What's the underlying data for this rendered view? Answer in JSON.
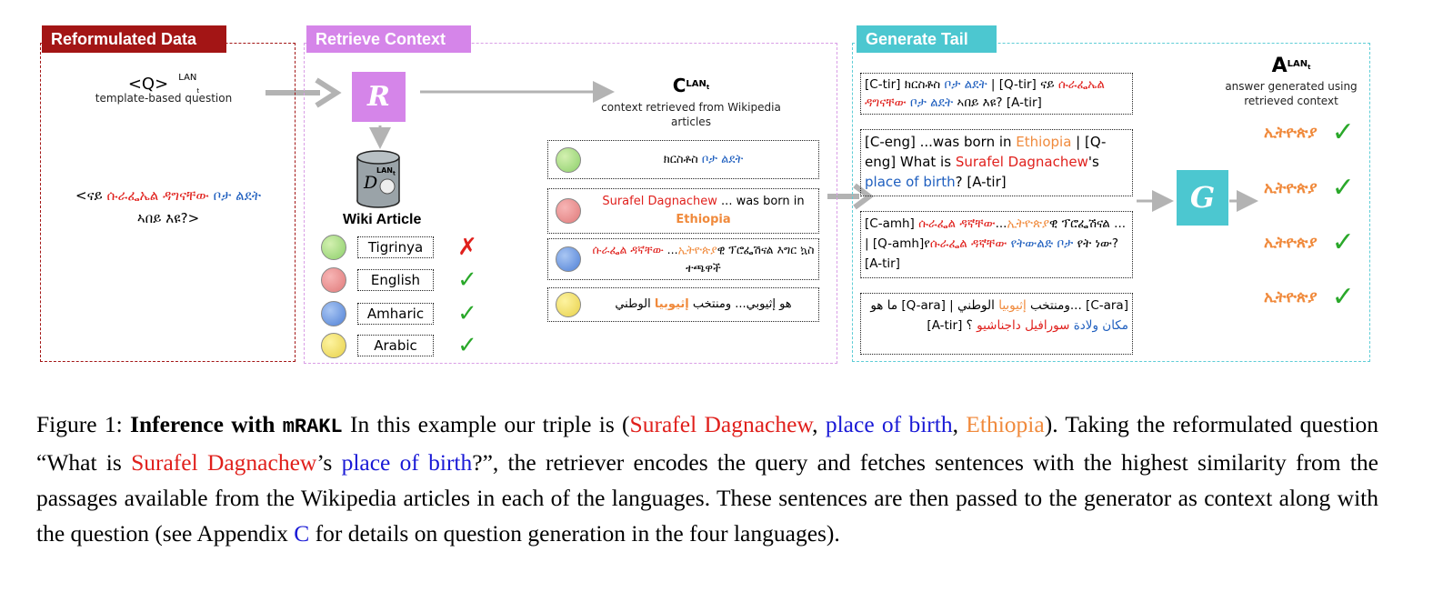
{
  "colors": {
    "reformulated": "#a31515",
    "retrieve": "#d585e9",
    "generate": "#4cc7d0",
    "subject": "#e0201c",
    "relation": "#1f5fbf",
    "object": "#f08a3c",
    "check": "#2aa82a"
  },
  "panel1": {
    "tag": "Reformulated Data",
    "q_label": "<Q>",
    "q_sup": "LAN",
    "q_sub": "t",
    "q_caption": "template-based question",
    "question": {
      "p1": "<ናይ ",
      "subject": "ሱራፌኤል ዳግናቸው",
      "p2": " ",
      "relation": "ቦታ ልደት",
      "p3": " ኣበይ እዩ?>"
    }
  },
  "panel2": {
    "tag": "Retrieve Context",
    "retriever_glyph": "R",
    "db_glyph": "D",
    "db_sup": "LAN",
    "db_sub": "t",
    "db_caption": "Wiki Article",
    "c_label": "C",
    "c_sup": "LAN",
    "c_sub": "t",
    "c_caption": "context retrieved from Wikipedia articles",
    "languages": [
      {
        "name": "Tigrinya",
        "status": "cross"
      },
      {
        "name": "English",
        "status": "check"
      },
      {
        "name": "Amharic",
        "status": "check"
      },
      {
        "name": "Arabic",
        "status": "check"
      }
    ],
    "contexts": [
      {
        "a": "ክርስቶስ ",
        "b": "ቦታ ልደት",
        "c": ""
      },
      {
        "a": "Surafel Dagnachew",
        "b": " ... was born in ",
        "c": "Ethiopia"
      },
      {
        "a": "ሱራፌል ዳኛቸው",
        "b": " ...",
        "c": "ኢትዮጵያ",
        "d": "ዊ ፕሮፌሽናል እግር ኳስ ተጫዋች"
      },
      {
        "a": "هو إثيوبي... ومنتخب ",
        "c": "إثيوبيا",
        "b": " الوطني"
      }
    ]
  },
  "panel3": {
    "tag": "Generate Tail",
    "generator_glyph": "G",
    "a_label": "A",
    "a_sup": "LAN",
    "a_sub": "t",
    "a_caption": "answer generated using retrieved context",
    "inputs": [
      {
        "t1": "[C-tir] ክርስቶስ ",
        "r1": "ቦታ ልደት",
        "t2": " | [Q-tir] ናይ ",
        "s1": "ሱራፌኤል ዳግናቸው",
        "t3": " ",
        "r2": "ቦታ ልደት",
        "t4": " ኣበይ እዩ?  [A-tir]"
      },
      {
        "t1": "[C-eng] ...was born in ",
        "o1": "Ethiopia",
        "t2": " | [Q-eng] What is ",
        "s1": "Surafel Dagnachew",
        "t3": "'s ",
        "r1": "place of birth",
        "t4": "?  [A-tir]"
      },
      {
        "t1": "[C-amh] ",
        "s1": "ሱራፌል ዳኛቸው",
        "t2": "...",
        "o1": "ኢትዮጵያ",
        "t3": "ዊ ፕሮፌሽናል ... | [Q-amh]የ",
        "s2": "ሱራፌል ዳኛቸው",
        "t4": " ",
        "r1": "የትውልድ ቦታ",
        "t5": " የት ነው? [A-tir]"
      },
      {
        "t1": "[C-ara] ...ومنتخب ",
        "o1": "إثيوبيا",
        "t2": " الوطني | [Q-ara] ما هو ",
        "r1": "مكان ولادة",
        "t3": " ",
        "s1": "سورافيل داجناشيو",
        "t4": " ؟ [A-tir]"
      }
    ],
    "answers": [
      "ኢትዮጵያ",
      "ኢትዮጵያ",
      "ኢትዮጵያ",
      "ኢትዮጵያ"
    ]
  },
  "caption": {
    "label": "Figure 1: ",
    "bold": "Inference with ",
    "model": "mRAKL",
    "s1": "  In this example our triple is (",
    "subject": "Surafel Dagnachew",
    "comma1": ", ",
    "relation": "place of birth",
    "comma2": ", ",
    "object": "Ethiopia",
    "s2": "). Taking the reformulated question “What is ",
    "subject2": "Surafel Dagnachew",
    "s3": "’s ",
    "relation2": "place of birth",
    "s4": "?”, the retriever encodes the query and fetches sentences with the highest similarity from the passages available from the Wikipedia articles in each of the languages. These sentences are then passed to the generator as context along with the question (see Appendix ",
    "appendix": "C",
    "s5": " for details on question generation in the four languages)."
  }
}
